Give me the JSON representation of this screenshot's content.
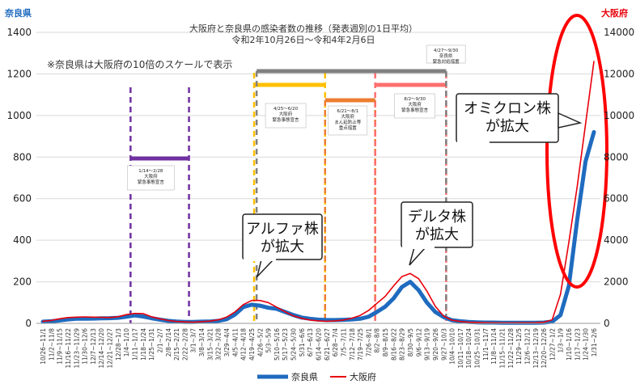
{
  "chart_data": {
    "type": "line",
    "title": "大阪府と奈良県の感染者数の推移（発表週別の1日平均）",
    "subtitle": "令和2年10月26日～令和4年2月6日",
    "note": "※奈良県は大阪府の10倍のスケールで表示",
    "left_axis": {
      "label": "奈良県",
      "color": "#1f6bbf",
      "ylim": [
        0,
        1400
      ],
      "ticks": [
        0,
        200,
        400,
        600,
        800,
        1000,
        1200,
        1400
      ]
    },
    "right_axis": {
      "label": "大阪府",
      "color": "#e8000b",
      "ylim": [
        0,
        14000
      ],
      "ticks": [
        0,
        2000,
        4000,
        6000,
        8000,
        10000,
        12000,
        14000
      ]
    },
    "categories": [
      "10/26~11/1",
      "11/2~11/8",
      "11/9~11/15",
      "11/16~11/22",
      "11/23~11/29",
      "11/30~12/6",
      "12/7~12/13",
      "12/14~12/20",
      "12/21~12/27",
      "12/28~1/3",
      "1/4~1/10",
      "1/11~1/17",
      "1/18~1/24",
      "1/25~1/31",
      "2/1~2/7",
      "2/8~2/14",
      "2/15~2/21",
      "2/22~2/28",
      "3/1~3/7",
      "3/8~3/14",
      "3/15~3/21",
      "3/22~3/28",
      "3/29~4/4",
      "4/5~4/11",
      "4/12~4/18",
      "4/19~4/25",
      "4/26~5/2",
      "5/3~5/9",
      "5/10~5/16",
      "5/17~5/23",
      "5/24~5/30",
      "5/31~6/6",
      "6/7~6/13",
      "6/14~6/20",
      "6/21~6/27",
      "6/28~7/4",
      "7/5~7/11",
      "7/12~7/18",
      "7/19~7/25",
      "7/26~8/1",
      "8/2~8/8",
      "8/9~8/15",
      "8/16~8/22",
      "8/23~8/29",
      "8/30~9/5",
      "9/6~9/12",
      "9/13~9/19",
      "9/20~9/26",
      "9/27~10/3",
      "10/4~10/10",
      "10/11~10/17",
      "10/18~10/24",
      "10/25~10/31",
      "11/1~11/7",
      "11/8~11/14",
      "11/15~11/21",
      "11/22~11/28",
      "11/29~12/5",
      "12/6~12/12",
      "12/13~12/19",
      "12/20~12/26",
      "12/27~1/2",
      "1/3~1/9",
      "1/10~1/16",
      "1/17~1/23",
      "1/24~1/30",
      "1/31~2/6"
    ],
    "tick_labels": [
      "10/26~11/1",
      "11/2~11/8",
      "11/9~11/15",
      "11/16~11/22",
      "11/23~11/29",
      "11/30~12/6",
      "12/7~12/13",
      "12/14~12/20",
      "12/21~12/27",
      "12/28~1/3",
      "1/4~1/10",
      "1/11~1/17",
      "1/18~1/24",
      "1/25~1/31",
      "2/1~2/7",
      "2/8~2/14",
      "2/15~2/21",
      "2/22~2/28",
      "3/1~3/7",
      "3/8~3/14",
      "3/15~3/21",
      "3/22~3/28",
      "3/29~4/4",
      "4/5~4/11",
      "4/12~4/18",
      "4/19~4/25",
      "4/26~5/2",
      "5/3~5/9",
      "5/10~5/16",
      "5/17~5/23",
      "5/24~5/30",
      "5/31~6/6",
      "6/7~6/13",
      "6/14~6/20",
      "6/21~6/27",
      "6/28~7/4",
      "7/5~7/11",
      "7/12~7/18",
      "7/19~7/25",
      "7/26~8/1",
      "8/2~8/8",
      "8/9~8/15",
      "8/16~8/22",
      "8/23~8/29",
      "8/30~9/5",
      "9/6~9/12",
      "9/13~9/19",
      "9/20~9/26",
      "9/27~10/3",
      "10/4~10/10",
      "10/11~10/17",
      "10/18~10/24",
      "10/25~10/31",
      "11/1~11/7",
      "11/8~11/14",
      "11/15~11/21",
      "11/22~11/28",
      "11/29~12/5",
      "12/6~12/12",
      "12/13~12/19",
      "12/20~12/26",
      "12/27~1/2",
      "1/3~1/9",
      "1/10~1/16",
      "1/17~1/23",
      "1/24~1/30",
      "1/31~2/6"
    ],
    "series": [
      {
        "name": "奈良県",
        "axis": "left",
        "color": "#1f6bbf",
        "values": [
          8,
          10,
          14,
          19,
          22,
          22,
          23,
          24,
          25,
          27,
          32,
          38,
          33,
          25,
          18,
          12,
          9,
          7,
          7,
          8,
          9,
          12,
          20,
          42,
          78,
          90,
          85,
          75,
          70,
          55,
          40,
          28,
          22,
          18,
          16,
          16,
          17,
          19,
          22,
          32,
          55,
          80,
          120,
          175,
          200,
          160,
          100,
          55,
          30,
          15,
          10,
          7,
          5,
          4,
          4,
          3,
          3,
          3,
          3,
          3,
          4,
          8,
          40,
          180,
          500,
          780,
          920
        ]
      },
      {
        "name": "大阪府",
        "axis": "right",
        "color": "#e8000b",
        "values": [
          100,
          140,
          220,
          280,
          300,
          310,
          300,
          290,
          280,
          320,
          420,
          480,
          470,
          320,
          220,
          140,
          90,
          70,
          60,
          80,
          110,
          170,
          300,
          550,
          900,
          1100,
          1100,
          1000,
          780,
          560,
          360,
          240,
          160,
          120,
          100,
          120,
          160,
          250,
          380,
          620,
          960,
          1300,
          1800,
          2250,
          2400,
          2150,
          1550,
          820,
          350,
          150,
          90,
          60,
          45,
          35,
          30,
          28,
          26,
          30,
          30,
          40,
          60,
          170,
          1400,
          3900,
          6600,
          9600,
          12600
        ]
      }
    ],
    "periods": [
      {
        "label_lines": [
          "1/14～2/28",
          "大阪府",
          "緊急事態宣言"
        ],
        "start_index": 10.5,
        "end_index": 17.5,
        "color": "#7030a0"
      },
      {
        "label_lines": [
          "4/25～6/20",
          "大阪府",
          "緊急事態宣言"
        ],
        "start_index": 25.3,
        "end_index": 33.8,
        "color": "#ffc000"
      },
      {
        "label_lines": [
          "6/21～8/1",
          "大阪府",
          "まん延防止等",
          "重点措置"
        ],
        "start_index": 33.8,
        "end_index": 39.8,
        "color": "#ed7d31"
      },
      {
        "label_lines": [
          "8/2～9/30",
          "大阪府",
          "緊急事態宣言"
        ],
        "start_index": 39.8,
        "end_index": 48.3,
        "color": "#ff6f6f"
      },
      {
        "label_lines": [
          "4/27～9/30",
          "奈良県",
          "緊急対処措置"
        ],
        "start_index": 25.6,
        "end_index": 48.3,
        "color": "#808080"
      }
    ],
    "callouts": [
      {
        "lines": [
          "アルファ株",
          "が拡大"
        ]
      },
      {
        "lines": [
          "デルタ株",
          "が拡大"
        ]
      },
      {
        "lines": [
          "オミクロン株",
          "が拡大"
        ]
      }
    ],
    "legend": {
      "position": "bottom",
      "items": [
        "奈良県",
        "大阪府"
      ]
    }
  }
}
